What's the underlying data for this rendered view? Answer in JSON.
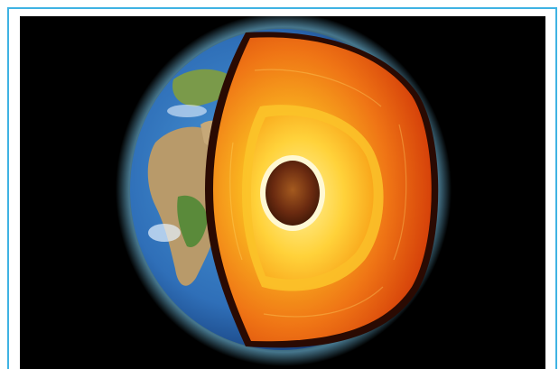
{
  "image": {
    "subject": "earth-cutaway",
    "colors": {
      "frame_border": "#3fb3e3",
      "background": "#000000",
      "ocean": "#2f7fc7",
      "land": "#b89a6a",
      "vegetation": "#5a8a3a",
      "crust_edge": "#c23a08",
      "mantle_outer": "#e8560e",
      "mantle_inner": "#f7a21a",
      "outer_core": "#ffd23a",
      "inner_core": "#6a2a10",
      "atmosphere_glow": "#7fd6ff"
    }
  }
}
